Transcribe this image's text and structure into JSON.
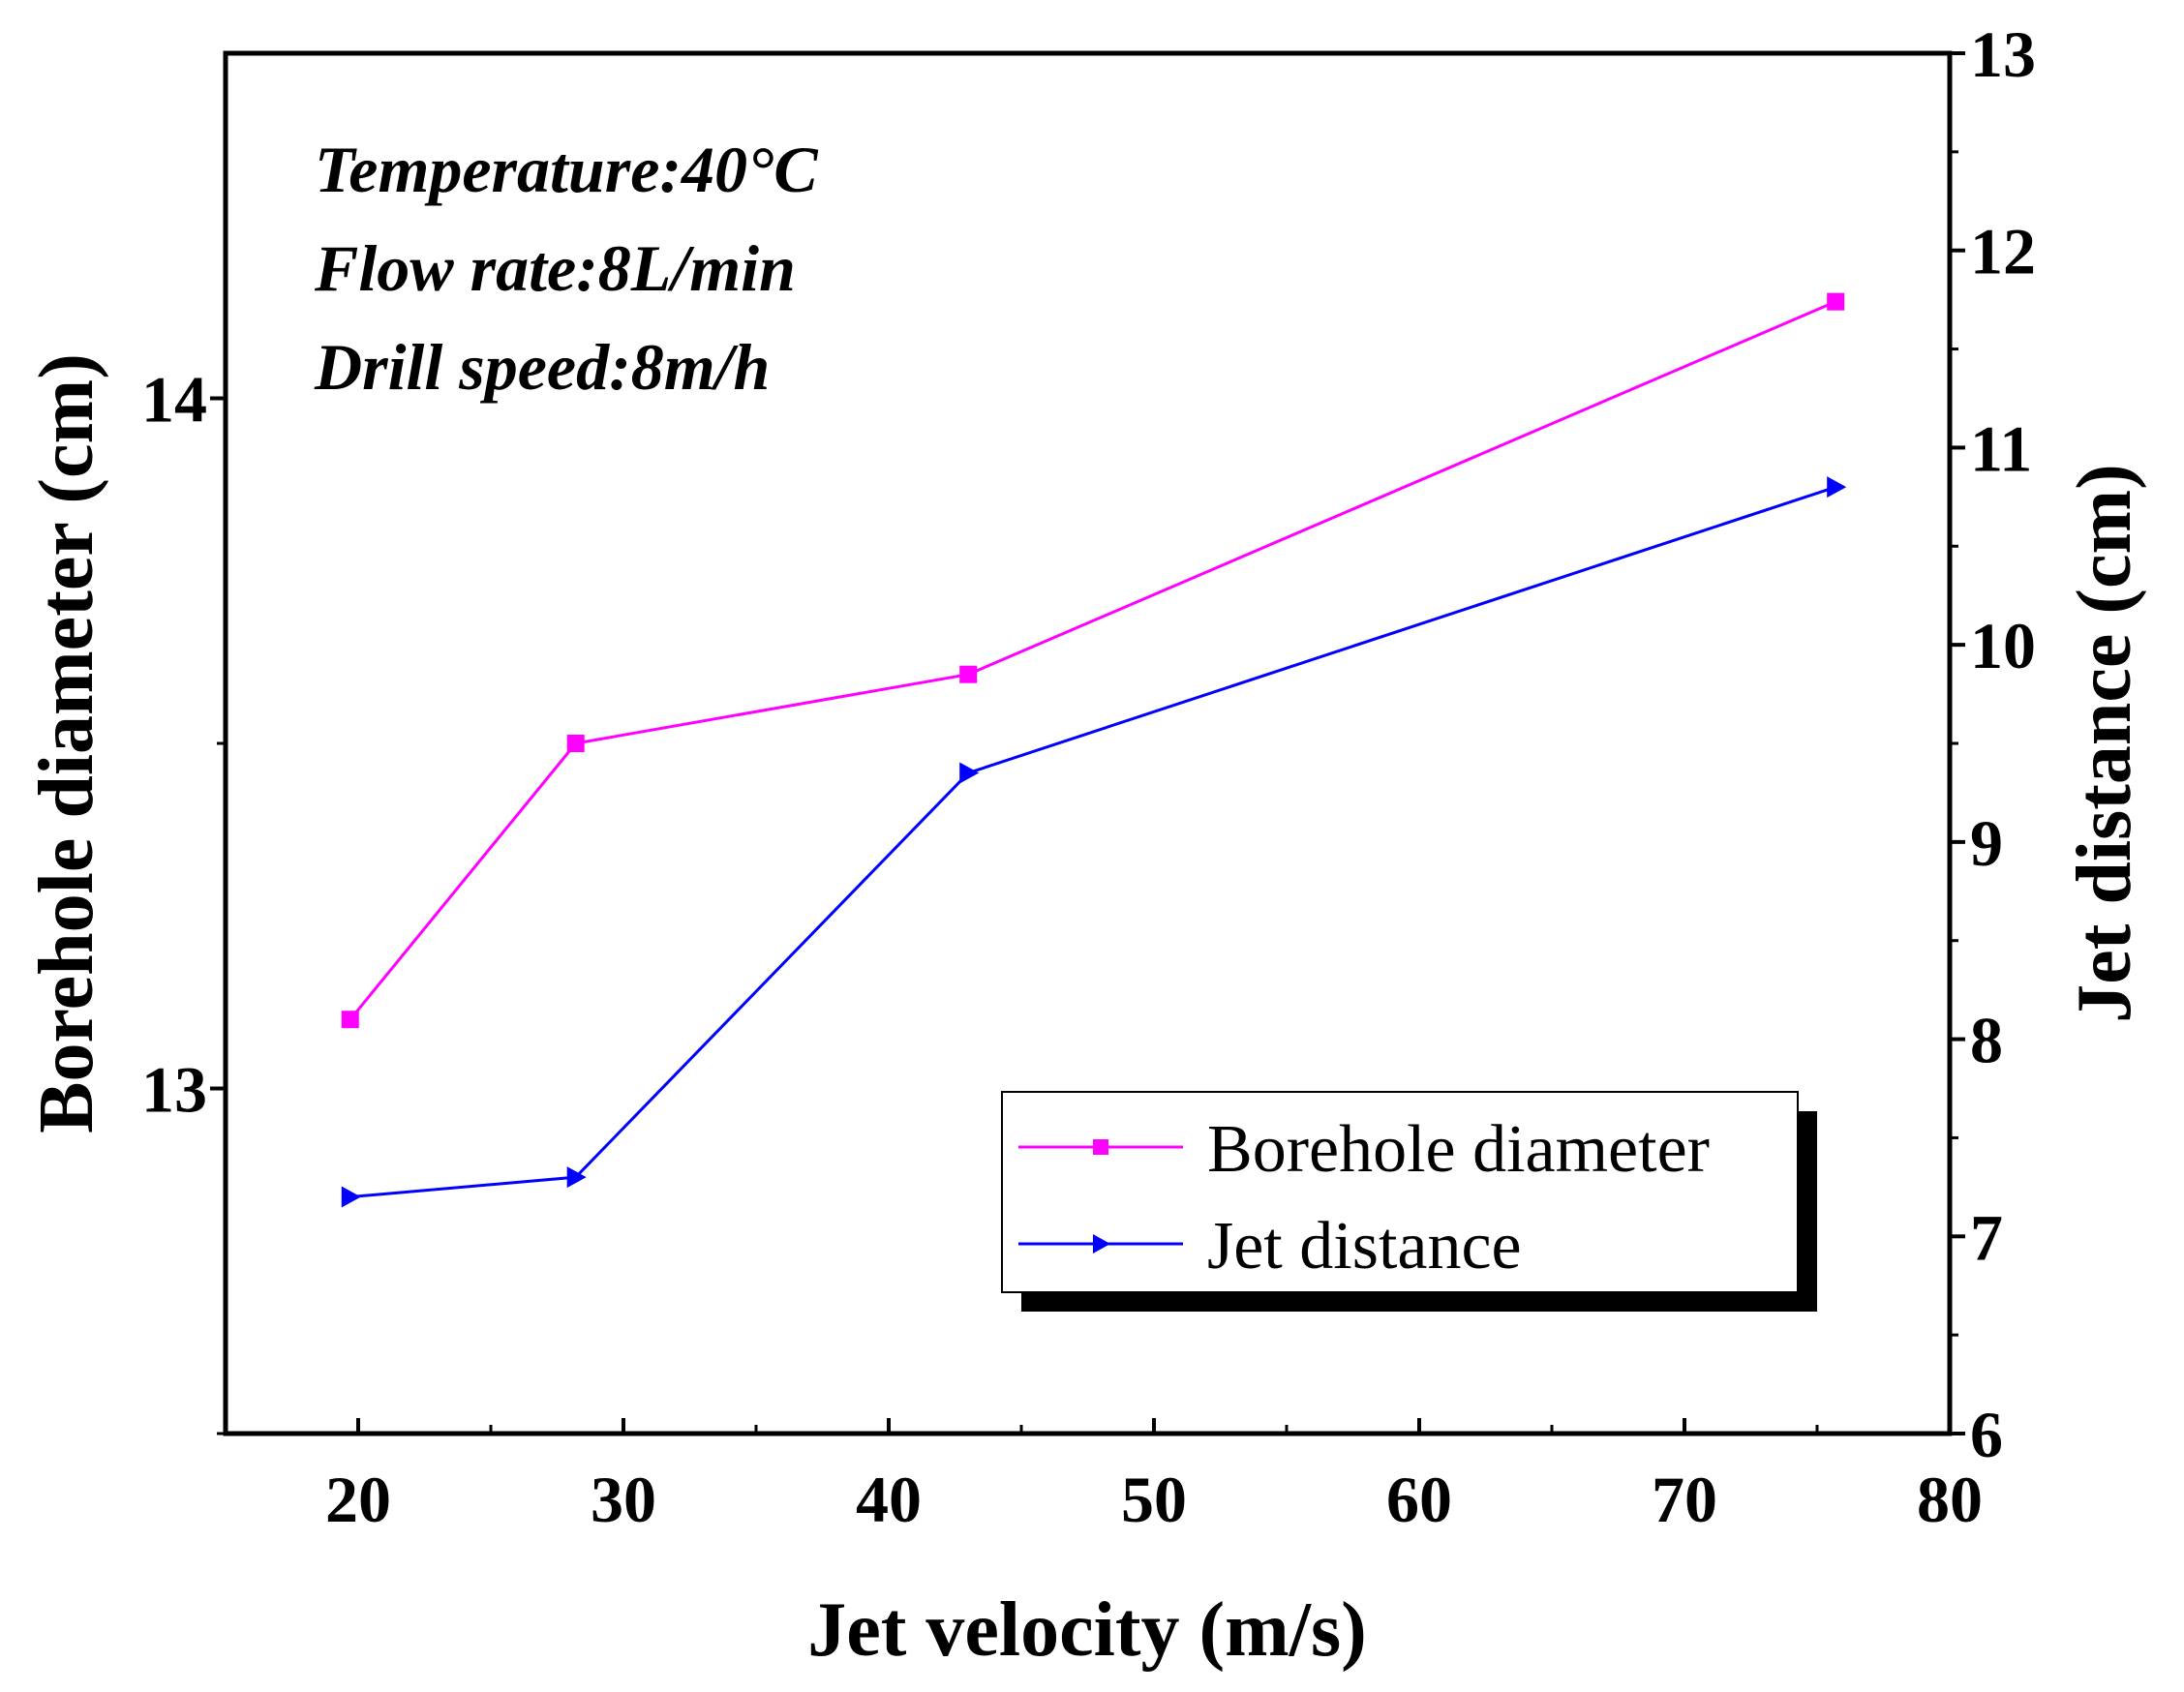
{
  "chart_data": {
    "type": "line",
    "title": "",
    "xlabel": "Jet velocity (m/s)",
    "ylabel": "Borehole diameter (cm)",
    "y2label": "Jet distance (cm)",
    "xlim": [
      15,
      80
    ],
    "ylim": [
      12.5,
      14.5
    ],
    "y2lim": [
      6,
      13
    ],
    "xticks": [
      20,
      30,
      40,
      50,
      60,
      70,
      80
    ],
    "yticks": [
      13,
      14
    ],
    "y2ticks": [
      6,
      7,
      8,
      9,
      10,
      11,
      12,
      13
    ],
    "x": [
      19.7,
      28.2,
      43.0,
      75.7
    ],
    "series": [
      {
        "name": "Borehole diameter",
        "axis": "left",
        "color": "#ff00ff",
        "marker": "square",
        "values": [
          13.1,
          13.5,
          13.6,
          14.14
        ]
      },
      {
        "name": "Jet distance",
        "axis": "right",
        "color": "#0000ff",
        "marker": "triangle-right",
        "values": [
          7.2,
          7.3,
          9.35,
          10.8
        ]
      }
    ],
    "annotations": [
      "Temperature:40°C",
      "Flow rate:8L/min",
      "Drill speed:8m/h"
    ],
    "legend_position": "bottom-right"
  }
}
